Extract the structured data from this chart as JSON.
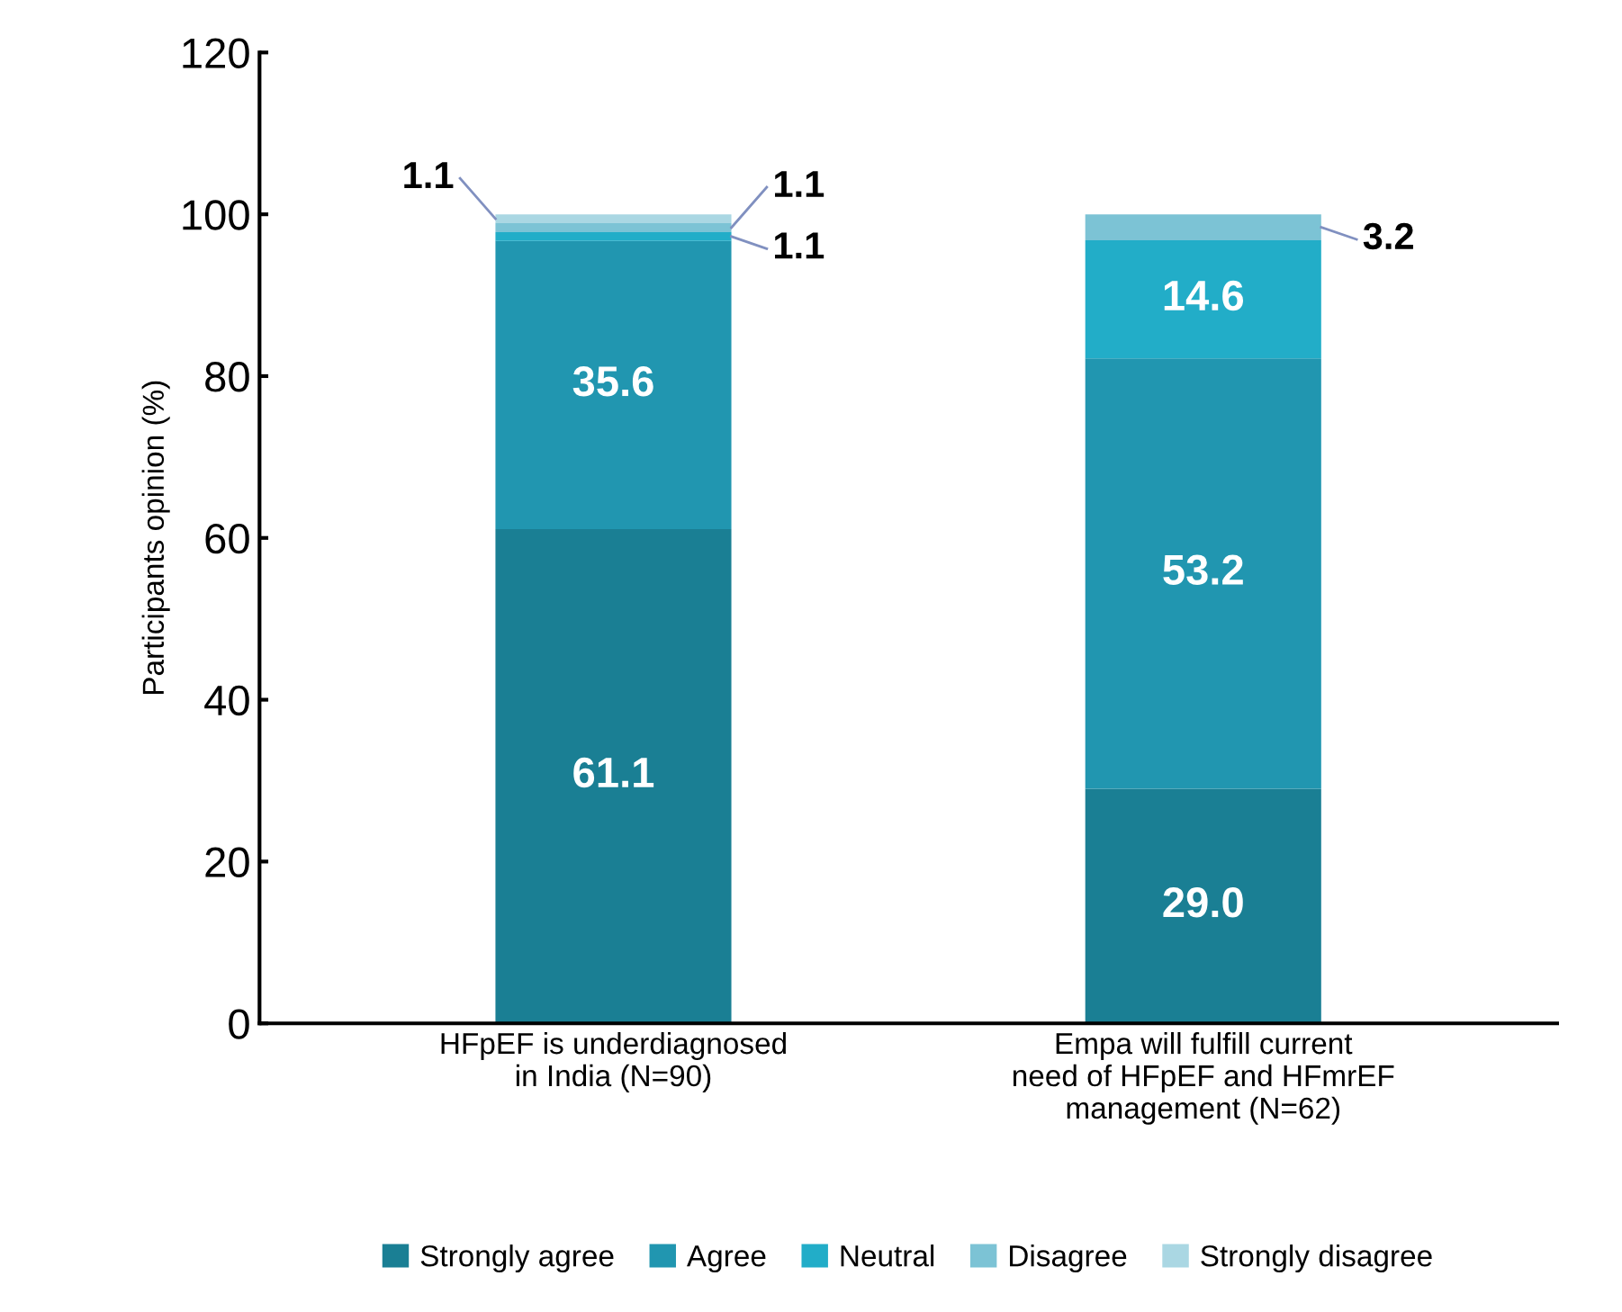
{
  "chart_data": {
    "type": "bar",
    "stacked": true,
    "ylabel": "Participants opinion (%)",
    "categories": [
      "HFpEF is underdiagnosed\nin India (N=90)",
      "Empa will fulfill current\nneed of HFpEF and HFmrEF\nmanagement (N=62)"
    ],
    "series": [
      {
        "name": "Strongly agree",
        "color": "#1a7f94",
        "values": [
          61.1,
          29.0
        ],
        "value_labels": [
          "61.1",
          "29.0"
        ]
      },
      {
        "name": "Agree",
        "color": "#2196b0",
        "values": [
          35.6,
          53.2
        ],
        "value_labels": [
          "35.6",
          "53.2"
        ]
      },
      {
        "name": "Neutral",
        "color": "#22adc8",
        "values": [
          1.1,
          14.6
        ],
        "value_labels": [
          "1.1",
          "14.6"
        ]
      },
      {
        "name": "Disagree",
        "color": "#7cc3d5",
        "values": [
          1.1,
          3.2
        ],
        "value_labels": [
          "1.1",
          "3.2"
        ]
      },
      {
        "name": "Strongly disagree",
        "color": "#aad7e3",
        "values": [
          1.1,
          null
        ],
        "value_labels": [
          "1.1",
          null
        ]
      }
    ],
    "ylim": [
      0,
      120
    ],
    "yticks": [
      0,
      20,
      40,
      60,
      80,
      100,
      120
    ],
    "grid": false,
    "legend": "bottom"
  }
}
